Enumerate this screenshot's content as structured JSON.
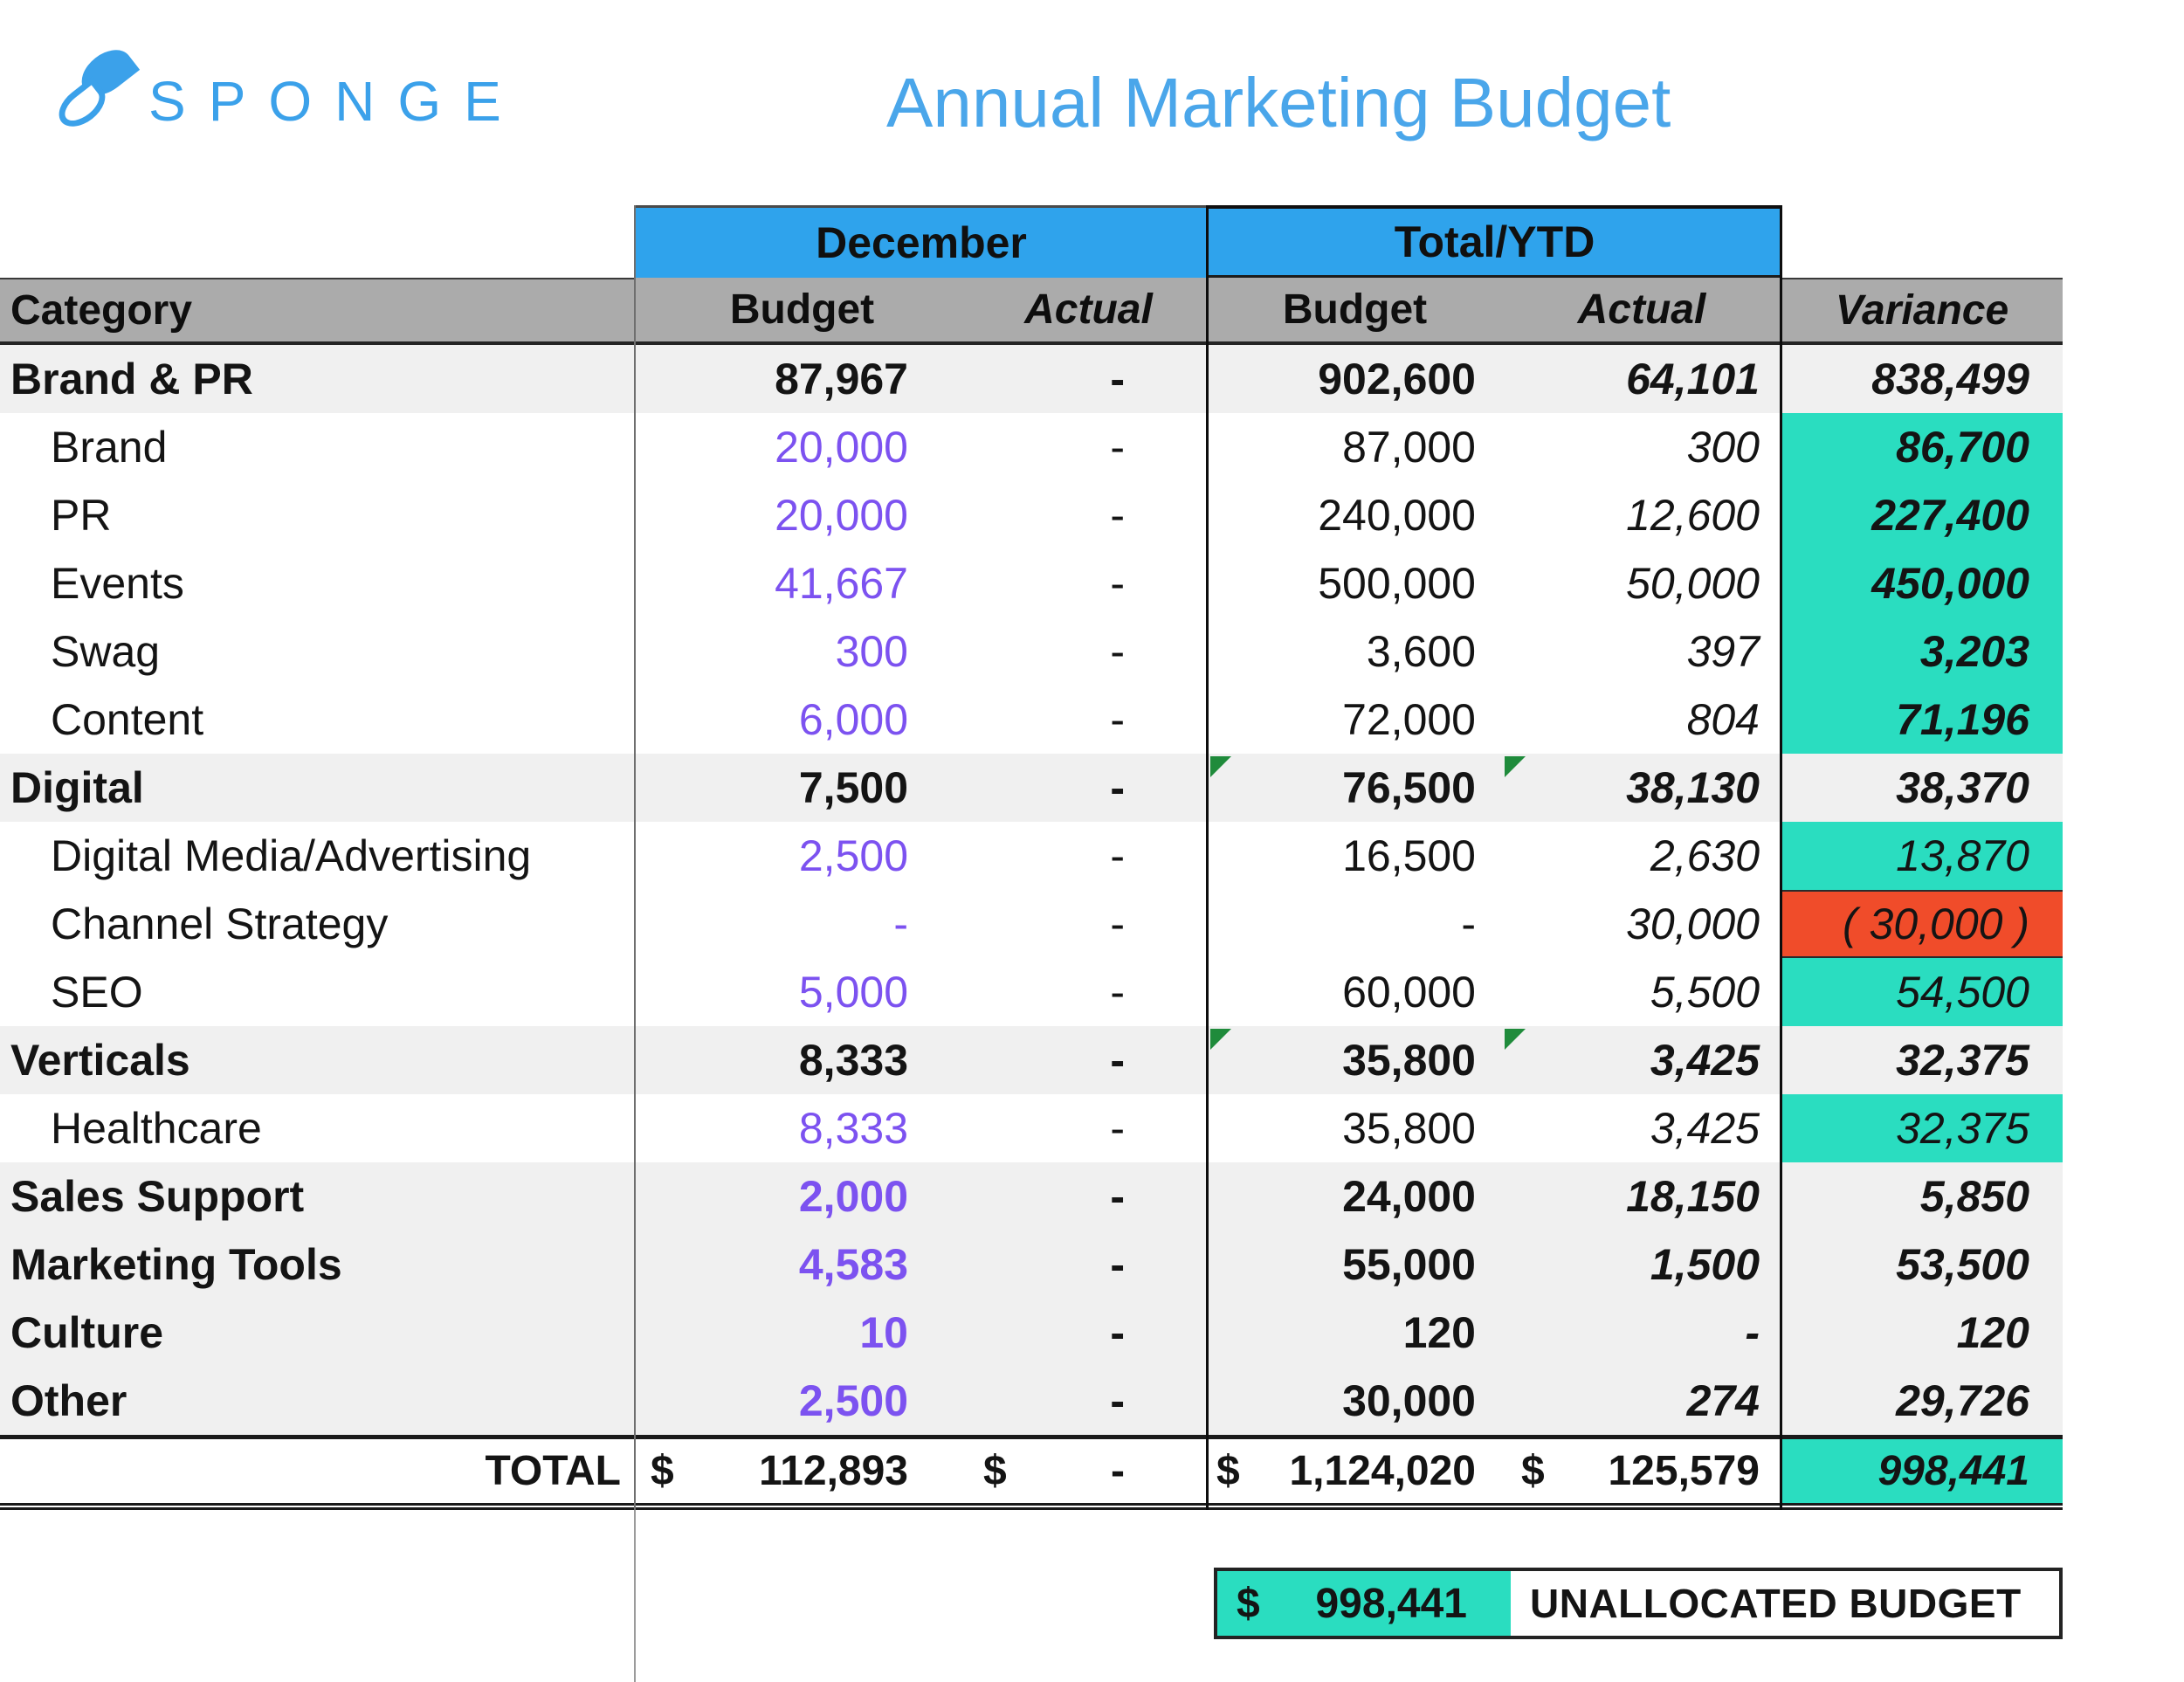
{
  "logo": {
    "text": "SPONGE"
  },
  "title": "Annual Marketing Budget",
  "colors": {
    "header_blue": "#2FA3EC",
    "accent_teal": "#2ADDC0",
    "negative_red": "#F04C2A",
    "input_purple": "#7C52F0",
    "header_gray": "#ABABAB",
    "band_gray": "#F0F0F0",
    "title_blue": "#4AA6EA",
    "logo_blue": "#3BA1EA",
    "flag_green": "#1F8B3B"
  },
  "table": {
    "groups": {
      "december": "December",
      "total_ytd": "Total/YTD"
    },
    "headers": {
      "category": "Category",
      "dec_budget": "Budget",
      "dec_actual": "Actual",
      "ytd_budget": "Budget",
      "ytd_actual": "Actual",
      "variance": "Variance"
    },
    "rows": [
      {
        "label": "Brand & PR",
        "band": true,
        "cells": [
          [
            "87,967",
            "b"
          ],
          [
            "-",
            "b"
          ],
          [
            "902,600",
            "b"
          ],
          [
            "64,101",
            "bi"
          ],
          [
            "838,499",
            "bi"
          ]
        ]
      },
      {
        "label": "Brand",
        "band": false,
        "cells": [
          [
            "20,000",
            "p"
          ],
          [
            "-",
            "r"
          ],
          [
            "87,000",
            "r"
          ],
          [
            "300",
            "i"
          ],
          [
            "86,700",
            "bi"
          ]
        ]
      },
      {
        "label": "PR",
        "band": false,
        "cells": [
          [
            "20,000",
            "p"
          ],
          [
            "-",
            "r"
          ],
          [
            "240,000",
            "r"
          ],
          [
            "12,600",
            "i"
          ],
          [
            "227,400",
            "bi"
          ]
        ]
      },
      {
        "label": "Events",
        "band": false,
        "cells": [
          [
            "41,667",
            "p"
          ],
          [
            "-",
            "r"
          ],
          [
            "500,000",
            "r"
          ],
          [
            "50,000",
            "i"
          ],
          [
            "450,000",
            "bi"
          ]
        ]
      },
      {
        "label": "Swag",
        "band": false,
        "cells": [
          [
            "300",
            "p"
          ],
          [
            "-",
            "r"
          ],
          [
            "3,600",
            "r"
          ],
          [
            "397",
            "i"
          ],
          [
            "3,203",
            "bi"
          ]
        ]
      },
      {
        "label": "Content",
        "band": false,
        "cells": [
          [
            "6,000",
            "p"
          ],
          [
            "-",
            "r"
          ],
          [
            "72,000",
            "r"
          ],
          [
            "804",
            "i"
          ],
          [
            "71,196",
            "bi"
          ]
        ]
      },
      {
        "label": "Digital",
        "band": true,
        "cells": [
          [
            "7,500",
            "b"
          ],
          [
            "-",
            "b"
          ],
          [
            "76,500",
            "b",
            "flag"
          ],
          [
            "38,130",
            "bi",
            "flag"
          ],
          [
            "38,370",
            "bi"
          ]
        ]
      },
      {
        "label": "Digital Media/Advertising",
        "band": false,
        "cells": [
          [
            "2,500",
            "p"
          ],
          [
            "-",
            "r"
          ],
          [
            "16,500",
            "r"
          ],
          [
            "2,630",
            "i"
          ],
          [
            "13,870",
            "i"
          ]
        ]
      },
      {
        "label": "Channel Strategy",
        "band": false,
        "cells": [
          [
            "-",
            "p"
          ],
          [
            "-",
            "r"
          ],
          [
            "-",
            "r"
          ],
          [
            "30,000",
            "i"
          ],
          [
            "( 30,000 )",
            "i",
            "neg"
          ]
        ]
      },
      {
        "label": "SEO",
        "band": false,
        "cells": [
          [
            "5,000",
            "p"
          ],
          [
            "-",
            "r"
          ],
          [
            "60,000",
            "r"
          ],
          [
            "5,500",
            "i"
          ],
          [
            "54,500",
            "i"
          ]
        ]
      },
      {
        "label": "Verticals",
        "band": true,
        "cells": [
          [
            "8,333",
            "b"
          ],
          [
            "-",
            "b"
          ],
          [
            "35,800",
            "b",
            "flag"
          ],
          [
            "3,425",
            "bi",
            "flag"
          ],
          [
            "32,375",
            "bi"
          ]
        ]
      },
      {
        "label": "Healthcare",
        "band": false,
        "cells": [
          [
            "8,333",
            "p"
          ],
          [
            "-",
            "r"
          ],
          [
            "35,800",
            "r"
          ],
          [
            "3,425",
            "i"
          ],
          [
            "32,375",
            "i"
          ]
        ]
      },
      {
        "label": "Sales Support",
        "band": true,
        "cells": [
          [
            "2,000",
            "pb"
          ],
          [
            "-",
            "b"
          ],
          [
            "24,000",
            "b"
          ],
          [
            "18,150",
            "bi"
          ],
          [
            "5,850",
            "bi"
          ]
        ]
      },
      {
        "label": "Marketing Tools",
        "band": true,
        "cells": [
          [
            "4,583",
            "pb"
          ],
          [
            "-",
            "b"
          ],
          [
            "55,000",
            "b"
          ],
          [
            "1,500",
            "bi"
          ],
          [
            "53,500",
            "bi"
          ]
        ]
      },
      {
        "label": "Culture",
        "band": true,
        "cells": [
          [
            "10",
            "pb"
          ],
          [
            "-",
            "b"
          ],
          [
            "120",
            "b"
          ],
          [
            "-",
            "bi"
          ],
          [
            "120",
            "bi"
          ]
        ]
      },
      {
        "label": "Other",
        "band": true,
        "cells": [
          [
            "2,500",
            "pb"
          ],
          [
            "-",
            "b"
          ],
          [
            "30,000",
            "b"
          ],
          [
            "274",
            "bi"
          ],
          [
            "29,726",
            "bi"
          ]
        ]
      }
    ],
    "total": {
      "label": "TOTAL",
      "dec_budget": {
        "sym": "$",
        "val": "112,893"
      },
      "dec_actual": {
        "sym": "$",
        "val": "-"
      },
      "ytd_budget": {
        "sym": "$",
        "val": "1,124,020"
      },
      "ytd_actual": {
        "sym": "$",
        "val": "125,579"
      },
      "variance": "998,441"
    }
  },
  "footer": {
    "sym": "$",
    "value": "998,441",
    "label": "UNALLOCATED BUDGET"
  }
}
